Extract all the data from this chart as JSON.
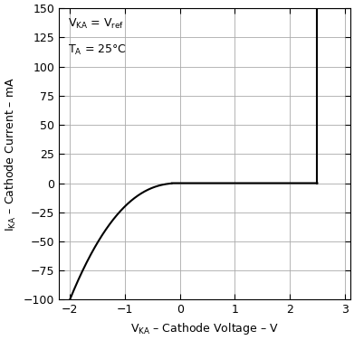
{
  "xlim": [
    -2.2,
    3.1
  ],
  "ylim": [
    -100,
    150
  ],
  "xticks": [
    -2,
    -1,
    0,
    1,
    2,
    3
  ],
  "yticks": [
    -100,
    -75,
    -50,
    -25,
    0,
    25,
    50,
    75,
    100,
    125,
    150
  ],
  "xlabel": "V$_{\\rm KA}$ – Cathode Voltage – V",
  "ylabel": "I$_{\\rm KA}$ – Cathode Current – mA",
  "grid_color": "#aaaaaa",
  "line_color": "#000000",
  "bg_color": "#ffffff",
  "figsize": [
    3.91,
    3.76
  ],
  "dpi": 100,
  "annot1": "V$_{\\rm KA}$ = V$_{\\rm ref}$",
  "annot2": "T$_{\\rm A}$ = 25°C",
  "curve_A": 20.0,
  "curve_n": 2.32,
  "flat_x_end": 2.5,
  "rise_y_top": 150
}
